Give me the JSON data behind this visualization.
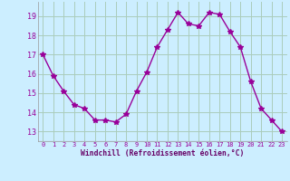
{
  "x": [
    0,
    1,
    2,
    3,
    4,
    5,
    6,
    7,
    8,
    9,
    10,
    11,
    12,
    13,
    14,
    15,
    16,
    17,
    18,
    19,
    20,
    21,
    22,
    23
  ],
  "y": [
    17.0,
    15.9,
    15.1,
    14.4,
    14.2,
    13.6,
    13.6,
    13.5,
    13.9,
    15.1,
    16.1,
    17.4,
    18.3,
    19.2,
    18.6,
    18.5,
    19.2,
    19.1,
    18.2,
    17.4,
    15.6,
    14.2,
    13.6,
    13.0
  ],
  "line_color": "#990099",
  "marker": "*",
  "marker_size": 4,
  "bg_color": "#cceeff",
  "grid_color": "#aaccbb",
  "xlabel": "Windchill (Refroidissement éolien,°C)",
  "xlabel_color": "#660066",
  "tick_color": "#990099",
  "ylim": [
    12.5,
    19.75
  ],
  "yticks": [
    13,
    14,
    15,
    16,
    17,
    18,
    19
  ],
  "xticks": [
    0,
    1,
    2,
    3,
    4,
    5,
    6,
    7,
    8,
    9,
    10,
    11,
    12,
    13,
    14,
    15,
    16,
    17,
    18,
    19,
    20,
    21,
    22,
    23
  ],
  "xticklabels": [
    "0",
    "1",
    "2",
    "3",
    "4",
    "5",
    "6",
    "7",
    "8",
    "9",
    "10",
    "11",
    "12",
    "13",
    "14",
    "15",
    "16",
    "17",
    "18",
    "19",
    "20",
    "21",
    "22",
    "23"
  ]
}
